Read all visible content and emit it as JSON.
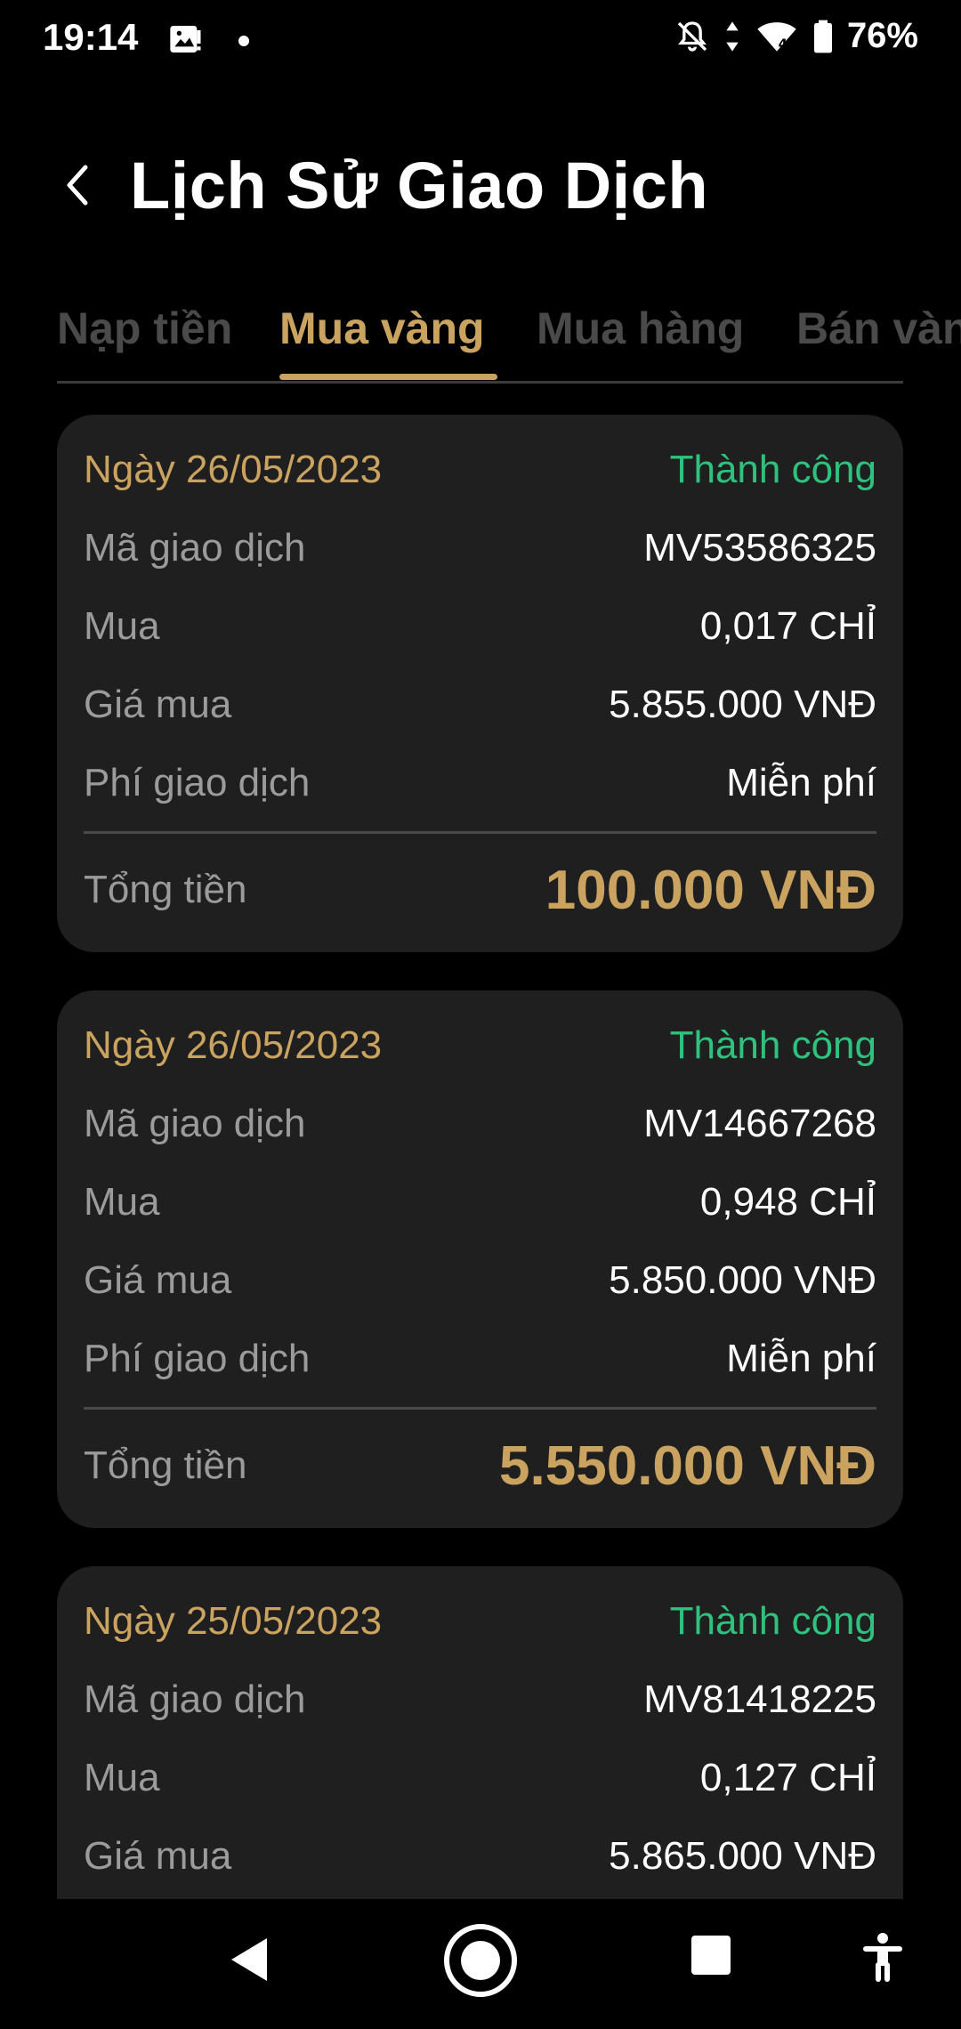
{
  "status_bar": {
    "time": "19:14",
    "battery": "76%",
    "icons": [
      "gallery-icon",
      "notification-dot",
      "bell-off-icon",
      "data-arrows-icon",
      "wifi-icon",
      "battery-icon"
    ]
  },
  "header": {
    "title": "Lịch Sử Giao Dịch",
    "back_icon": "chevron-left-icon"
  },
  "tabs": [
    {
      "label": "Nạp tiền",
      "active": false
    },
    {
      "label": "Mua vàng",
      "active": true
    },
    {
      "label": "Mua hàng",
      "active": false
    },
    {
      "label": "Bán vàng",
      "active": false
    }
  ],
  "labels": {
    "code": "Mã giao dịch",
    "buy": "Mua",
    "price": "Giá mua",
    "fee": "Phí giao dịch",
    "total": "Tổng tiền"
  },
  "transactions": [
    {
      "date": "Ngày 26/05/2023",
      "status": "Thành công",
      "code": "MV53586325",
      "amount": "0,017 CHỈ",
      "price": "5.855.000 VNĐ",
      "fee": "Miễn phí",
      "total": "100.000 VNĐ"
    },
    {
      "date": "Ngày 26/05/2023",
      "status": "Thành công",
      "code": "MV14667268",
      "amount": "0,948 CHỈ",
      "price": "5.850.000 VNĐ",
      "fee": "Miễn phí",
      "total": "5.550.000 VNĐ"
    },
    {
      "date": "Ngày 25/05/2023",
      "status": "Thành công",
      "code": "MV81418225",
      "amount": "0,127 CHỈ",
      "price": "5.865.000 VNĐ"
    }
  ],
  "colors": {
    "accent_gold": "#c9a35f",
    "success_green": "#2ec27e",
    "card_bg": "#1f1f1f",
    "background": "#000000"
  },
  "nav_bar": {
    "buttons": [
      "back-triangle-icon",
      "home-circle-icon",
      "recents-square-icon",
      "accessibility-icon"
    ]
  }
}
